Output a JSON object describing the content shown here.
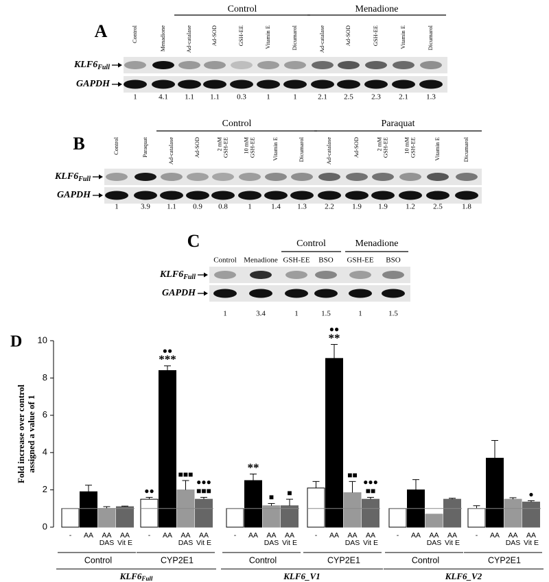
{
  "panels": {
    "A": {
      "label": "A",
      "target": "KLF6",
      "target_subscript": "Full",
      "loading": "GAPDH",
      "lanes": [
        {
          "name": "Control",
          "value": 1
        },
        {
          "name": "Menadione",
          "value": 4.1
        }
      ],
      "groups": [
        {
          "name": "Control",
          "lanes": [
            {
              "name": "Ad-catalase",
              "value": 1.1
            },
            {
              "name": "Ad-SOD",
              "value": 1.1
            },
            {
              "name": "GSH-EE",
              "value": 0.3
            },
            {
              "name": "Vitamin E",
              "value": 1
            },
            {
              "name": "Dicumarol",
              "value": 1
            }
          ]
        },
        {
          "name": "Menadione",
          "lanes": [
            {
              "name": "Ad-catalase",
              "value": 2.1
            },
            {
              "name": "Ad-SOD",
              "value": 2.5
            },
            {
              "name": "GSH-EE",
              "value": 2.3
            },
            {
              "name": "Vitamin E",
              "value": 2.1
            },
            {
              "name": "Dicumarol",
              "value": 1.3
            }
          ]
        }
      ]
    },
    "B": {
      "label": "B",
      "target": "KLF6",
      "target_subscript": "Full",
      "loading": "GAPDH",
      "lanes": [
        {
          "name": "Control",
          "value": 1
        },
        {
          "name": "Paraquat",
          "value": 3.9
        }
      ],
      "groups": [
        {
          "name": "Control",
          "lanes": [
            {
              "name": "Ad-catalase",
              "value": 1.1
            },
            {
              "name": "Ad-SOD",
              "value": 0.9
            },
            {
              "name": [
                "2 mM",
                "GSH-EE"
              ],
              "value": 0.8
            },
            {
              "name": [
                "10 mM",
                "GSH-EE"
              ],
              "value": 1
            },
            {
              "name": "Vitamin E",
              "value": 1.4
            },
            {
              "name": "Dicumarol",
              "value": 1.3
            }
          ]
        },
        {
          "name": "Paraquat",
          "lanes": [
            {
              "name": "Ad-catalase",
              "value": 2.2
            },
            {
              "name": "Ad-SOD",
              "value": 1.9
            },
            {
              "name": [
                "2 mM",
                "GSH-EE"
              ],
              "value": 1.9
            },
            {
              "name": [
                "10 mM",
                "GSH-EE"
              ],
              "value": 1.2
            },
            {
              "name": "Vitamin E",
              "value": 2.5
            },
            {
              "name": "Dicumarol",
              "value": 1.8
            }
          ]
        }
      ]
    },
    "C": {
      "label": "C",
      "target": "KLF6",
      "target_subscript": "Full",
      "loading": "GAPDH",
      "lanes": [
        {
          "name": "Control",
          "value": 1
        },
        {
          "name": "Menadione",
          "value": 3.4
        }
      ],
      "groups": [
        {
          "name": "Control",
          "lanes": [
            {
              "name": "GSH-EE",
              "value": 1
            },
            {
              "name": "BSO",
              "value": 1.5
            }
          ]
        },
        {
          "name": "Menadione",
          "lanes": [
            {
              "name": "GSH-EE",
              "value": 1
            },
            {
              "name": "BSO",
              "value": 1.5
            }
          ]
        }
      ]
    }
  },
  "chart_data": {
    "type": "bar",
    "panel_label": "D",
    "ylabel": [
      "Fold increase over control",
      "assigned a value of 1"
    ],
    "ylim": [
      0,
      10
    ],
    "yticks": [
      0,
      2,
      4,
      6,
      8,
      10
    ],
    "reference_line": 1,
    "categories": [
      "Control",
      "CYP2E1",
      "Control",
      "CYP2E1",
      "Control",
      "CYP2E1"
    ],
    "genes": [
      {
        "name": "KLF6",
        "subscript": "Full"
      },
      {
        "name": "KLF6_V1"
      },
      {
        "name": "KLF6_V2"
      }
    ],
    "series": [
      {
        "name": [
          "-"
        ],
        "color": "#ffffff",
        "values": [
          1,
          1.5,
          1,
          2.1,
          1,
          1
        ],
        "errors": [
          null,
          0.1,
          null,
          0.35,
          null,
          0.15
        ],
        "annotations": [
          null,
          [
            "●●"
          ],
          null,
          null,
          null,
          null
        ]
      },
      {
        "name": [
          "AA"
        ],
        "color": "#000000",
        "values": [
          1.9,
          8.4,
          2.5,
          9.05,
          2.0,
          3.7
        ],
        "errors": [
          0.35,
          0.25,
          0.35,
          0.75,
          0.55,
          0.95
        ],
        "annotations": [
          null,
          [
            "●●",
            "***"
          ],
          [
            "**"
          ],
          [
            "●●",
            "**"
          ],
          null,
          null
        ]
      },
      {
        "name": [
          "AA",
          "DAS"
        ],
        "color": "#999999",
        "values": [
          1.0,
          2.0,
          1.15,
          1.85,
          0.7,
          1.5
        ],
        "errors": [
          0.1,
          0.5,
          0.12,
          0.6,
          null,
          0.08
        ],
        "annotations": [
          null,
          [
            "■■■"
          ],
          [
            "■"
          ],
          [
            "■■"
          ],
          null,
          null
        ]
      },
      {
        "name": [
          "AA",
          "Vit E"
        ],
        "color": "#666666",
        "values": [
          1.1,
          1.5,
          1.15,
          1.5,
          1.5,
          1.35
        ],
        "errors": [
          0.03,
          0.1,
          0.35,
          0.1,
          0.05,
          0.07
        ],
        "annotations": [
          null,
          [
            "●●●",
            "■■■"
          ],
          [
            "■"
          ],
          [
            "●●●",
            "■■"
          ],
          null,
          [
            "●"
          ]
        ]
      }
    ]
  }
}
